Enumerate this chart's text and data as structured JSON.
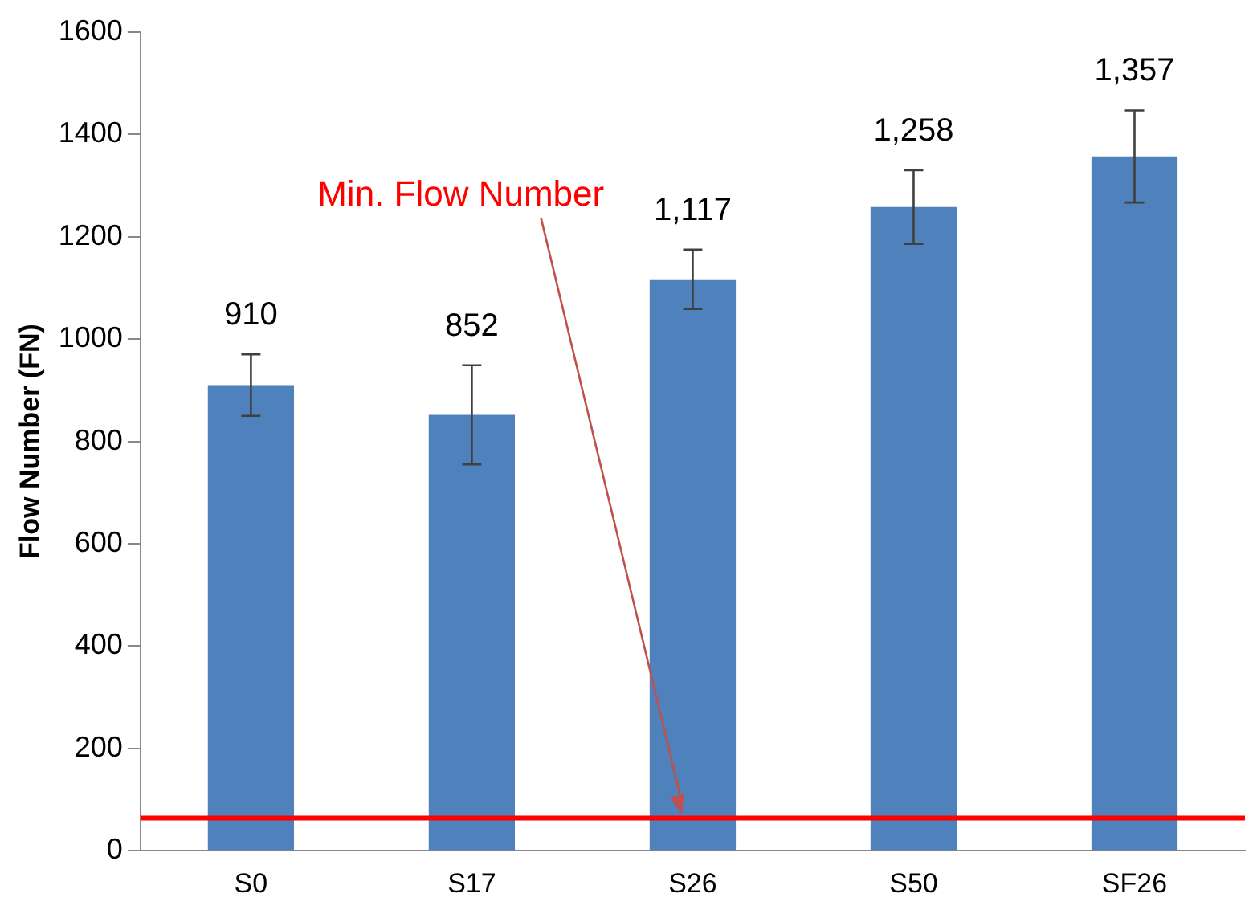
{
  "chart_data": {
    "type": "bar",
    "ylabel": "Flow Number (FN)",
    "categories": [
      "S0",
      "S17",
      "S26",
      "S50",
      "SF26"
    ],
    "values": [
      910,
      852,
      1117,
      1258,
      1357
    ],
    "value_labels": [
      "910",
      "852",
      "1,117",
      "1,258",
      "1,357"
    ],
    "errors": [
      60,
      97,
      58,
      72,
      90
    ],
    "color": "#4f81bd",
    "ylim": [
      0,
      1600
    ],
    "yticks": [
      0,
      200,
      400,
      600,
      800,
      1000,
      1200,
      1400,
      1600
    ],
    "grid": false,
    "legend": false,
    "ref_lines": [
      {
        "axis": "y",
        "value": 64,
        "label": "Min. Flow Number",
        "color": "#ff0000"
      }
    ]
  }
}
